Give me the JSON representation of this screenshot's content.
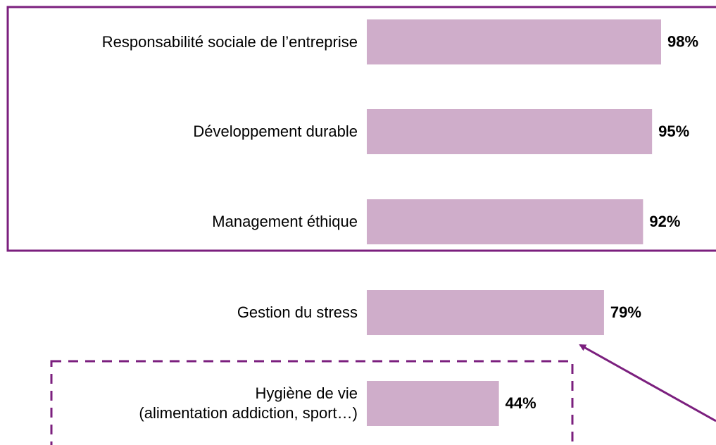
{
  "chart_data": {
    "type": "barh",
    "categories": [
      "Responsabilité sociale de l’entreprise",
      "Développement durable",
      "Management éthique",
      "Gestion du stress",
      "Hygiène de vie\n(alimentation addiction, sport…)"
    ],
    "values": [
      98,
      95,
      92,
      79,
      44
    ],
    "value_labels": [
      "98%",
      "95%",
      "92%",
      "79%",
      "44%"
    ],
    "color": "#cfadca",
    "xlim": [
      0,
      100
    ]
  }
}
